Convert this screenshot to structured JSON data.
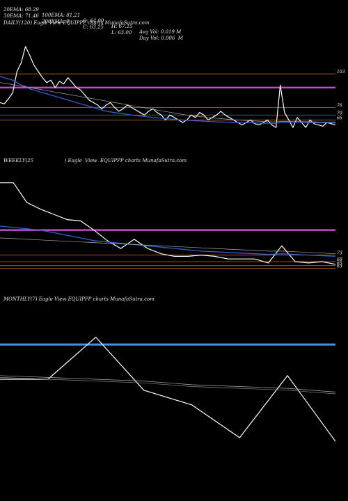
{
  "header": {
    "row1": [
      "20EMA: 68.29",
      "100EMA: 81.21",
      "O: 64.00",
      "H: 67.15",
      "Avg Vol: 0.019 M"
    ],
    "row2": [
      "30EMA: 71.46",
      "200EMA: 0",
      "C: 63.25",
      "L: 63.00",
      "Day Vol: 0.006  M"
    ]
  },
  "panels": {
    "daily": {
      "title": "DAILY(120) Eagle  View  EQUIPPP charts MunafaSutra.com"
    },
    "weekly": {
      "title": "WEEKLY(25                    ) Eagle  View  EQUIPPP charts MunafaSutra.com"
    },
    "monthly": {
      "title": "MONTHLY(7) Eagle  View  EQUIPPP charts MunafaSutra.com"
    }
  },
  "colors": {
    "background": "#000000",
    "price": "#ffffff",
    "ema_blue": "#2f5fd0",
    "magenta_level": "#cc44cc",
    "orange_level": "#c8641e",
    "gray_ema": "#aaaaaa",
    "monthly_blue": "#4a90e2"
  },
  "chart_data": [
    {
      "type": "line",
      "panel": "daily",
      "ylim": [
        45,
        140
      ],
      "level_labels": [
        "103",
        "76",
        "70",
        "66"
      ],
      "levels": {
        "magenta": 92,
        "orange": [
          103,
          76,
          70,
          66
        ],
        "magenta_label": ""
      },
      "series": [
        {
          "key": "price",
          "values": [
            80,
            79,
            83,
            88,
            105,
            112,
            125,
            118,
            110,
            105,
            100,
            96,
            98,
            92,
            97,
            95,
            100,
            96,
            92,
            90,
            86,
            82,
            80,
            78,
            75,
            78,
            80,
            76,
            73,
            75,
            78,
            76,
            74,
            72,
            70,
            73,
            75,
            72,
            70,
            66,
            70,
            68,
            66,
            64,
            66,
            70,
            68,
            72,
            70,
            66,
            68,
            70,
            73,
            70,
            68,
            66,
            64,
            62,
            64,
            66,
            63,
            62,
            64,
            66,
            62,
            60,
            94,
            72,
            66,
            60,
            68,
            64,
            60,
            66,
            63,
            62,
            61,
            64,
            63,
            62
          ]
        },
        {
          "key": "ema_blue",
          "values": [
            101,
            100,
            99,
            98,
            96,
            94,
            93,
            91,
            90,
            89,
            88,
            87,
            86,
            85,
            84,
            83,
            82,
            81,
            80,
            79,
            78,
            77,
            76,
            75,
            74,
            73,
            72.5,
            72,
            71.5,
            71,
            70.5,
            70,
            69.6,
            69.2,
            68.8,
            68.4,
            68,
            67.7,
            67.4,
            67.1,
            66.8,
            66.5,
            66.2,
            66,
            65.8,
            65.6,
            65.4,
            65.2,
            65,
            64.8,
            64.6,
            64.5,
            64.4,
            64.3,
            64.2,
            64.1,
            64,
            63.9,
            63.8,
            63.7,
            63.6,
            63.5,
            63.4,
            63.4,
            63.3,
            63.3,
            64,
            64.2,
            64.2,
            64.1,
            64.1,
            64,
            64,
            64,
            63.9,
            63.9,
            63.8,
            63.8,
            63.7,
            63.6
          ]
        },
        {
          "key": "ema_gray",
          "values": [
            96,
            95.5,
            95,
            94.4,
            93.8,
            93.2,
            92.6,
            92,
            91.4,
            90.8,
            90.2,
            89.6,
            89,
            88.4,
            87.8,
            87.2,
            86.6,
            86,
            85.4,
            84.8,
            84.2,
            83.6,
            83,
            82.4,
            81.8,
            81.2,
            80.6,
            80,
            79.4,
            78.8,
            78.2,
            77.6,
            77,
            76.4,
            75.8,
            75.2,
            74.6,
            74,
            73.4,
            72.8,
            72.2,
            71.6,
            71,
            70.5,
            70,
            69.6,
            69.2,
            68.8,
            68.4,
            68,
            67.7,
            67.4,
            67.1,
            66.8,
            66.5,
            66.2,
            66,
            65.8,
            65.6,
            65.4,
            65.2,
            65,
            64.8,
            64.6,
            64.5,
            64.5,
            64.8,
            64.8,
            64.8,
            64.7,
            64.7,
            64.6,
            64.6,
            64.5,
            64.5,
            64.4,
            64.4,
            64.3,
            64.3,
            64.2
          ]
        }
      ]
    },
    {
      "type": "line",
      "panel": "weekly",
      "ylim": [
        50,
        140
      ],
      "level_labels": [
        "73",
        "68",
        "65",
        "63"
      ],
      "levels": {
        "magenta": 92,
        "orange": [
          73,
          68,
          65,
          63
        ]
      },
      "series": [
        {
          "key": "price",
          "values": [
            128,
            128,
            113,
            108,
            104,
            100,
            99,
            92,
            84,
            78,
            85,
            78,
            74,
            72,
            72,
            73,
            72,
            70,
            70,
            70,
            67,
            80,
            68,
            67,
            68,
            66
          ]
        },
        {
          "key": "ema_blue",
          "values": [
            95,
            94,
            93,
            92,
            90,
            88,
            86,
            84,
            83,
            82,
            81,
            80,
            79,
            78,
            77,
            76,
            75.5,
            75,
            74.5,
            74,
            73.5,
            74,
            73.5,
            73,
            72.5,
            72
          ]
        },
        {
          "key": "ema_gray",
          "values": [
            86,
            85.5,
            85,
            84.5,
            84,
            83.5,
            83,
            82.5,
            82,
            81.5,
            81,
            80.5,
            80,
            79.5,
            79,
            78.5,
            78,
            77.5,
            77,
            76.5,
            76,
            76,
            75.5,
            75,
            74.5,
            74
          ]
        }
      ]
    },
    {
      "type": "line",
      "panel": "monthly",
      "ylim": [
        40,
        120
      ],
      "levels": {
        "blue": 99
      },
      "series": [
        {
          "key": "price",
          "values": [
            80,
            80,
            103,
            74,
            66,
            48,
            82,
            46
          ]
        },
        {
          "key": "ema_gray_1",
          "values": [
            82,
            81,
            80,
            79,
            77,
            76,
            75,
            73
          ]
        },
        {
          "key": "ema_gray_2",
          "values": [
            81,
            80,
            79,
            78,
            76,
            75,
            74,
            72
          ]
        }
      ]
    }
  ]
}
